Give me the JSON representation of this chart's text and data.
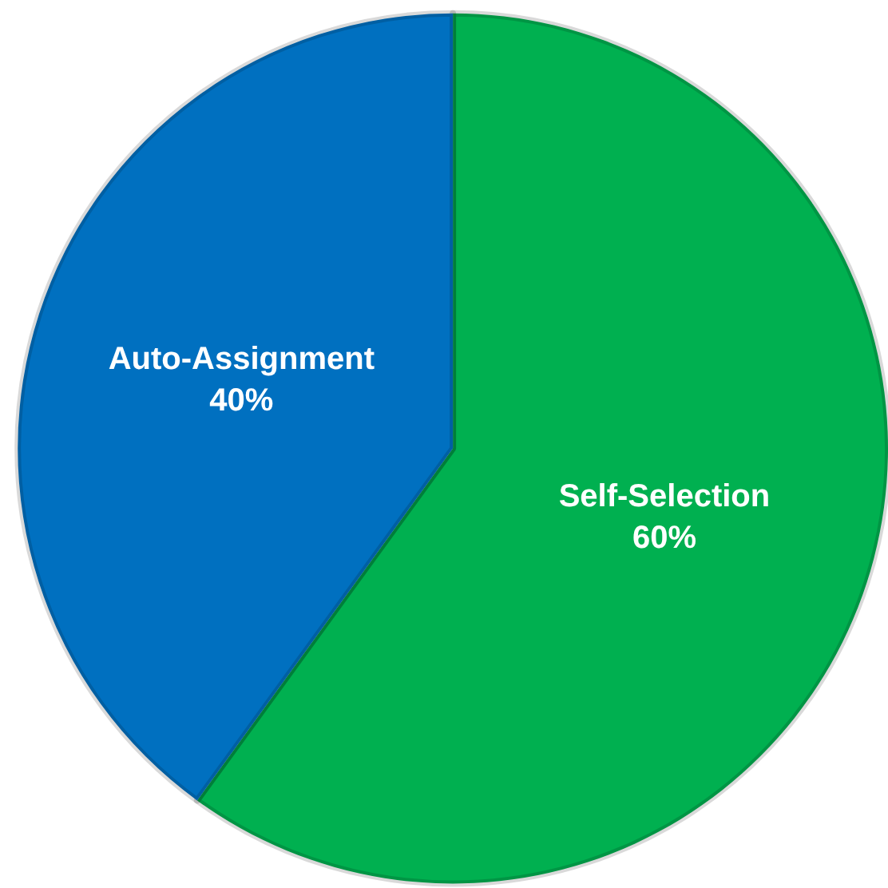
{
  "chart_data": {
    "type": "pie",
    "categories": [
      "Self-Selection",
      "Auto-Assignment"
    ],
    "values": [
      60,
      40
    ],
    "colors": [
      "#00b050",
      "#0070c0"
    ],
    "value_labels": [
      "60%",
      "40%"
    ],
    "legend": false
  }
}
